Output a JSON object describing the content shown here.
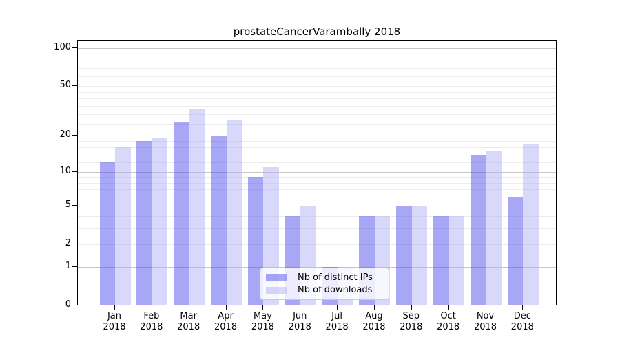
{
  "chart_data": {
    "type": "bar",
    "title": "prostateCancerVarambally 2018",
    "year": "2018",
    "categories": [
      "Jan",
      "Feb",
      "Mar",
      "Apr",
      "May",
      "Jun",
      "Jul",
      "Aug",
      "Sep",
      "Oct",
      "Nov",
      "Dec"
    ],
    "series": [
      {
        "name": "Nb of distinct IPs",
        "color": "rgba(80,80,235,0.5)",
        "color_hex_on_white": "#a7a7f5",
        "values": [
          12,
          18,
          26,
          20,
          9,
          4,
          1,
          4,
          5,
          4,
          14,
          6
        ]
      },
      {
        "name": "Nb of downloads",
        "color": "rgba(177,177,245,0.5)",
        "color_hex_on_white": "#d8d8fa",
        "values": [
          16,
          19,
          33,
          27,
          11,
          5,
          1,
          4,
          5,
          4,
          15,
          17
        ]
      }
    ],
    "xlabel": "",
    "ylabel": "",
    "yscale": "log1p",
    "ylim": [
      0,
      100
    ],
    "yticks": [
      0,
      1,
      2,
      5,
      10,
      20,
      50,
      100
    ],
    "major_gridlines": [
      1,
      10,
      100
    ],
    "minor_gridlines": [
      3,
      4,
      6,
      7,
      8,
      9,
      12,
      14,
      16,
      18,
      25,
      30,
      35,
      40,
      45,
      60,
      70,
      80,
      90
    ],
    "grid": "on",
    "legend_position": "inside lower center",
    "colors": {
      "major_grid": "#c6c6c6",
      "minor_grid": "#ebebeb",
      "axis": "#000000",
      "text": "#000000",
      "background": "#ffffff"
    }
  }
}
